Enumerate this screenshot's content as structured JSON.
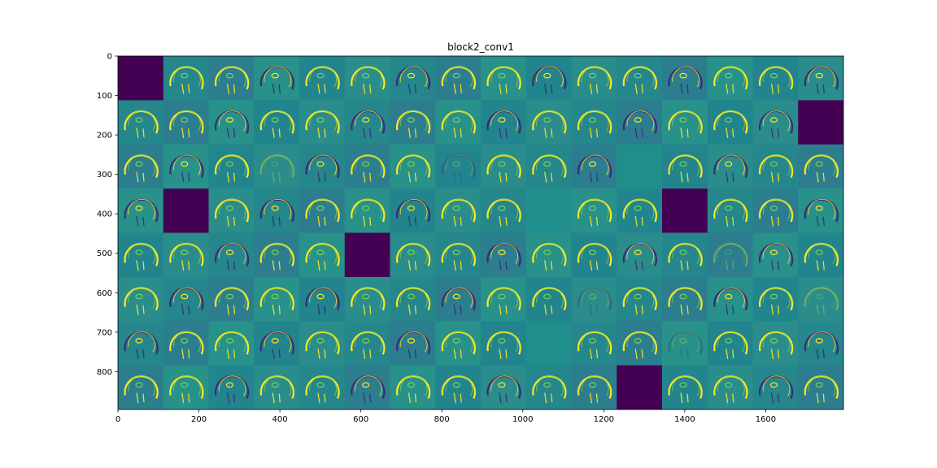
{
  "title": "block2_conv1",
  "colors": {
    "background": "#ffffff",
    "dead_channel": "#440154",
    "flat_channel": "#208f8c",
    "tile_background": "#2a8d8b",
    "edge_bright": "#fde725",
    "edge_mid": "#7ad151",
    "edge_dark": "#3b2a7a"
  },
  "grid": {
    "rows": 8,
    "cols": 16,
    "tile_size_data": 112,
    "colormap": "viridis",
    "dead_tiles": [
      [
        0,
        0
      ],
      [
        1,
        15
      ],
      [
        3,
        1
      ],
      [
        3,
        12
      ],
      [
        4,
        5
      ],
      [
        7,
        11
      ]
    ],
    "flat_tiles": [
      [
        3,
        9
      ],
      [
        2,
        11
      ],
      [
        6,
        9
      ]
    ],
    "faint_tiles": [
      [
        2,
        3
      ],
      [
        2,
        7
      ],
      [
        4,
        13
      ],
      [
        5,
        10
      ],
      [
        5,
        15
      ],
      [
        6,
        12
      ]
    ]
  },
  "axes": {
    "x_ticks": [
      "0",
      "200",
      "400",
      "600",
      "800",
      "1000",
      "1200",
      "1400",
      "1600"
    ],
    "y_ticks": [
      "0",
      "100",
      "200",
      "300",
      "400",
      "500",
      "600",
      "700",
      "800"
    ],
    "xlim": [
      0,
      1792
    ],
    "ylim": [
      896,
      0
    ]
  }
}
